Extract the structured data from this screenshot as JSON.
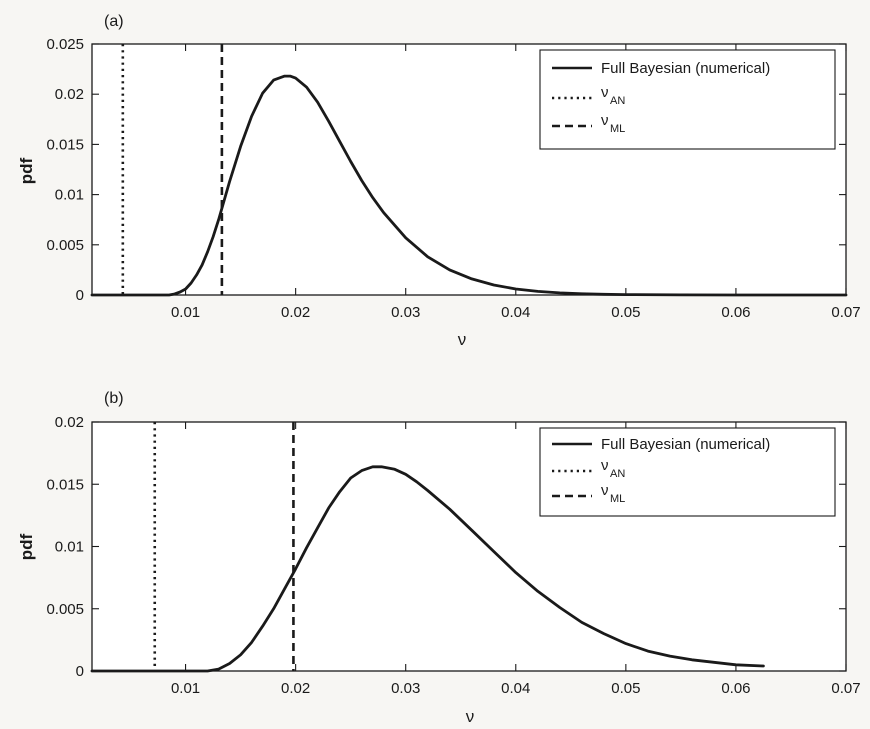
{
  "chart_data": [
    {
      "type": "line",
      "panel_label": "(a)",
      "xlabel": "ν",
      "ylabel": "pdf",
      "xlim": [
        0.0015,
        0.07
      ],
      "ylim": [
        0,
        0.025
      ],
      "xticks": [
        0.01,
        0.02,
        0.03,
        0.04,
        0.05,
        0.06,
        0.07
      ],
      "xtick_labels": [
        "0.01",
        "0.02",
        "0.03",
        "0.04",
        "0.05",
        "0.06",
        "0.07"
      ],
      "yticks": [
        0,
        0.005,
        0.01,
        0.015,
        0.02,
        0.025
      ],
      "ytick_labels": [
        "0",
        "0.005",
        "0.01",
        "0.015",
        "0.02",
        "0.025"
      ],
      "grid": false,
      "legend_position": "top-right",
      "series": [
        {
          "name": "Full Bayesian (numerical)",
          "style": "solid",
          "x": [
            0.0085,
            0.009,
            0.0095,
            0.01,
            0.0105,
            0.011,
            0.0115,
            0.012,
            0.0125,
            0.013,
            0.0135,
            0.014,
            0.015,
            0.016,
            0.017,
            0.018,
            0.019,
            0.0195,
            0.02,
            0.021,
            0.022,
            0.023,
            0.024,
            0.025,
            0.026,
            0.027,
            0.028,
            0.03,
            0.032,
            0.034,
            0.036,
            0.038,
            0.04,
            0.042,
            0.044,
            0.046,
            0.048,
            0.05,
            0.055,
            0.06,
            0.065,
            0.07
          ],
          "y": [
            0,
            0.0001,
            0.0003,
            0.0006,
            0.0012,
            0.002,
            0.003,
            0.0043,
            0.0058,
            0.0075,
            0.0094,
            0.0113,
            0.0148,
            0.0178,
            0.0201,
            0.0214,
            0.0218,
            0.0218,
            0.0216,
            0.0207,
            0.0192,
            0.0173,
            0.0153,
            0.0133,
            0.0114,
            0.0097,
            0.0082,
            0.0057,
            0.0038,
            0.0025,
            0.0016,
            0.001,
            0.0006,
            0.00036,
            0.00021,
            0.00012,
            7e-05,
            4e-05,
            1e-05,
            0,
            0,
            0
          ]
        },
        {
          "name": "ν_AN",
          "label_main": "ν",
          "label_sub": "AN",
          "style": "dotted",
          "x_value": 0.0043
        },
        {
          "name": "ν_ML",
          "label_main": "ν",
          "label_sub": "ML",
          "style": "dashed",
          "x_value": 0.0133
        }
      ]
    },
    {
      "type": "line",
      "panel_label": "(b)",
      "xlabel": "ν",
      "ylabel": "pdf",
      "xlim": [
        0.0015,
        0.07
      ],
      "ylim": [
        0,
        0.02
      ],
      "xticks": [
        0.01,
        0.02,
        0.03,
        0.04,
        0.05,
        0.06,
        0.07
      ],
      "xtick_labels": [
        "0.01",
        "0.02",
        "0.03",
        "0.04",
        "0.05",
        "0.06",
        "0.07"
      ],
      "yticks": [
        0,
        0.005,
        0.01,
        0.015,
        0.02
      ],
      "ytick_labels": [
        "0",
        "0.005",
        "0.01",
        "0.015",
        "0.02"
      ],
      "grid": false,
      "legend_position": "top-right",
      "series": [
        {
          "name": "Full Bayesian (numerical)",
          "style": "solid",
          "x": [
            0.012,
            0.013,
            0.014,
            0.015,
            0.016,
            0.017,
            0.018,
            0.019,
            0.02,
            0.021,
            0.022,
            0.023,
            0.024,
            0.025,
            0.026,
            0.027,
            0.0278,
            0.029,
            0.03,
            0.031,
            0.032,
            0.034,
            0.036,
            0.038,
            0.04,
            0.042,
            0.044,
            0.046,
            0.048,
            0.05,
            0.052,
            0.054,
            0.056,
            0.058,
            0.06,
            0.0625
          ],
          "y": [
            0,
            0.00015,
            0.0006,
            0.0013,
            0.0023,
            0.0036,
            0.005,
            0.0066,
            0.0082,
            0.0099,
            0.0115,
            0.0131,
            0.0144,
            0.0155,
            0.0161,
            0.0164,
            0.0164,
            0.0162,
            0.0158,
            0.0152,
            0.0145,
            0.013,
            0.0113,
            0.0096,
            0.0079,
            0.0064,
            0.0051,
            0.0039,
            0.003,
            0.0022,
            0.0016,
            0.0012,
            0.0009,
            0.0007,
            0.0005,
            0.0004
          ]
        },
        {
          "name": "ν_AN",
          "label_main": "ν",
          "label_sub": "AN",
          "style": "dotted",
          "x_value": 0.0072
        },
        {
          "name": "ν_ML",
          "label_main": "ν",
          "label_sub": "ML",
          "style": "dashed",
          "x_value": 0.0198
        }
      ]
    }
  ]
}
